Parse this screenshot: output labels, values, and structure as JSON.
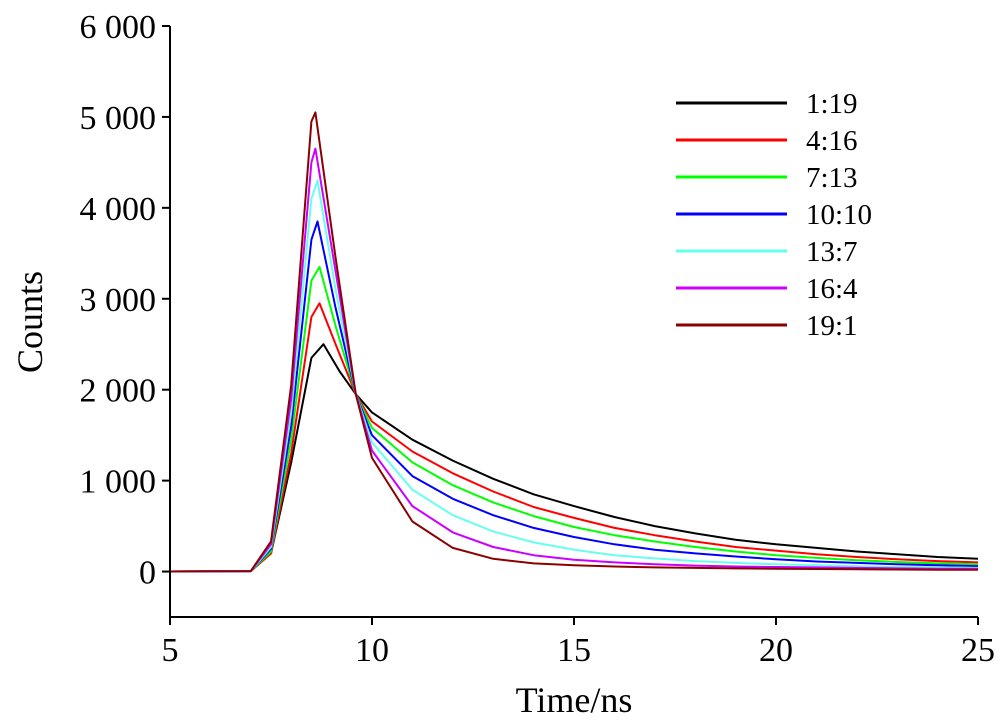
{
  "chart_data": {
    "type": "line",
    "xlabel": "Time/ns",
    "ylabel": "Counts",
    "xlim": [
      5,
      25
    ],
    "ylim": [
      -500,
      6000
    ],
    "xticks": [
      5,
      10,
      15,
      20,
      25
    ],
    "xtick_labels": [
      "5",
      "10",
      "15",
      "20",
      "25"
    ],
    "yticks": [
      0,
      1000,
      2000,
      3000,
      4000,
      5000,
      6000
    ],
    "ytick_labels": [
      "0",
      "1 000",
      "2 000",
      "3 000",
      "4 000",
      "5 000",
      "6 000"
    ],
    "grid": false,
    "legend_position": "top-right",
    "series": [
      {
        "name": "1:19",
        "color": "#000000",
        "x": [
          5,
          7.0,
          7.5,
          8.0,
          8.5,
          8.8,
          9.2,
          9.6,
          10,
          11,
          12,
          13,
          14,
          15,
          16,
          17,
          18,
          19,
          20,
          21,
          22,
          23,
          24,
          25
        ],
        "y": [
          0,
          5,
          200,
          1200,
          2350,
          2500,
          2200,
          1950,
          1750,
          1450,
          1220,
          1020,
          850,
          720,
          600,
          500,
          420,
          350,
          300,
          260,
          220,
          190,
          160,
          140
        ]
      },
      {
        "name": "4:16",
        "color": "#ff0000",
        "x": [
          5,
          7.0,
          7.5,
          8.0,
          8.5,
          8.7,
          9.1,
          9.6,
          10,
          11,
          12,
          13,
          14,
          15,
          16,
          17,
          18,
          19,
          20,
          21,
          22,
          23,
          24,
          25
        ],
        "y": [
          0,
          5,
          200,
          1300,
          2800,
          2950,
          2500,
          1950,
          1650,
          1320,
          1080,
          880,
          710,
          590,
          480,
          400,
          330,
          270,
          230,
          190,
          160,
          135,
          115,
          100
        ]
      },
      {
        "name": "7:13",
        "color": "#00ff00",
        "x": [
          5,
          7.0,
          7.5,
          8.0,
          8.5,
          8.7,
          9.1,
          9.6,
          10,
          11,
          12,
          13,
          14,
          15,
          16,
          17,
          18,
          19,
          20,
          21,
          22,
          23,
          24,
          25
        ],
        "y": [
          0,
          5,
          220,
          1450,
          3200,
          3350,
          2700,
          1950,
          1580,
          1200,
          950,
          760,
          610,
          490,
          400,
          330,
          270,
          220,
          180,
          150,
          125,
          105,
          90,
          80
        ]
      },
      {
        "name": "10:10",
        "color": "#0000ff",
        "x": [
          5,
          7.0,
          7.5,
          8.0,
          8.5,
          8.65,
          9.1,
          9.6,
          10,
          11,
          12,
          13,
          14,
          15,
          16,
          17,
          18,
          19,
          20,
          21,
          22,
          23,
          24,
          25
        ],
        "y": [
          0,
          5,
          250,
          1600,
          3650,
          3850,
          2900,
          1950,
          1500,
          1050,
          800,
          620,
          480,
          380,
          300,
          240,
          200,
          165,
          135,
          110,
          95,
          80,
          70,
          60
        ]
      },
      {
        "name": "13:7",
        "color": "#66ffee",
        "x": [
          5,
          7.0,
          7.5,
          8.0,
          8.5,
          8.65,
          9.1,
          9.6,
          10,
          11,
          12,
          13,
          14,
          15,
          16,
          17,
          18,
          19,
          20,
          21,
          22,
          23,
          24,
          25
        ],
        "y": [
          0,
          5,
          270,
          1750,
          4100,
          4300,
          3100,
          1950,
          1420,
          900,
          620,
          440,
          320,
          240,
          180,
          145,
          115,
          95,
          80,
          70,
          60,
          50,
          45,
          40
        ]
      },
      {
        "name": "16:4",
        "color": "#cc00ff",
        "x": [
          5,
          7.0,
          7.5,
          8.0,
          8.5,
          8.6,
          9.1,
          9.6,
          10,
          11,
          12,
          13,
          14,
          15,
          16,
          17,
          18,
          19,
          20,
          21,
          22,
          23,
          24,
          25
        ],
        "y": [
          0,
          5,
          300,
          1900,
          4500,
          4650,
          3300,
          1950,
          1330,
          720,
          430,
          270,
          180,
          130,
          100,
          80,
          65,
          55,
          50,
          45,
          40,
          35,
          30,
          30
        ]
      },
      {
        "name": "19:1",
        "color": "#8b0000",
        "x": [
          5,
          7.0,
          7.5,
          8.0,
          8.5,
          8.6,
          9.1,
          9.6,
          10,
          11,
          12,
          13,
          14,
          15,
          16,
          17,
          18,
          19,
          20,
          21,
          22,
          23,
          24,
          25
        ],
        "y": [
          0,
          5,
          330,
          2050,
          4950,
          5050,
          3450,
          1950,
          1250,
          550,
          260,
          140,
          90,
          70,
          55,
          45,
          40,
          35,
          30,
          28,
          25,
          22,
          20,
          20
        ]
      }
    ]
  }
}
